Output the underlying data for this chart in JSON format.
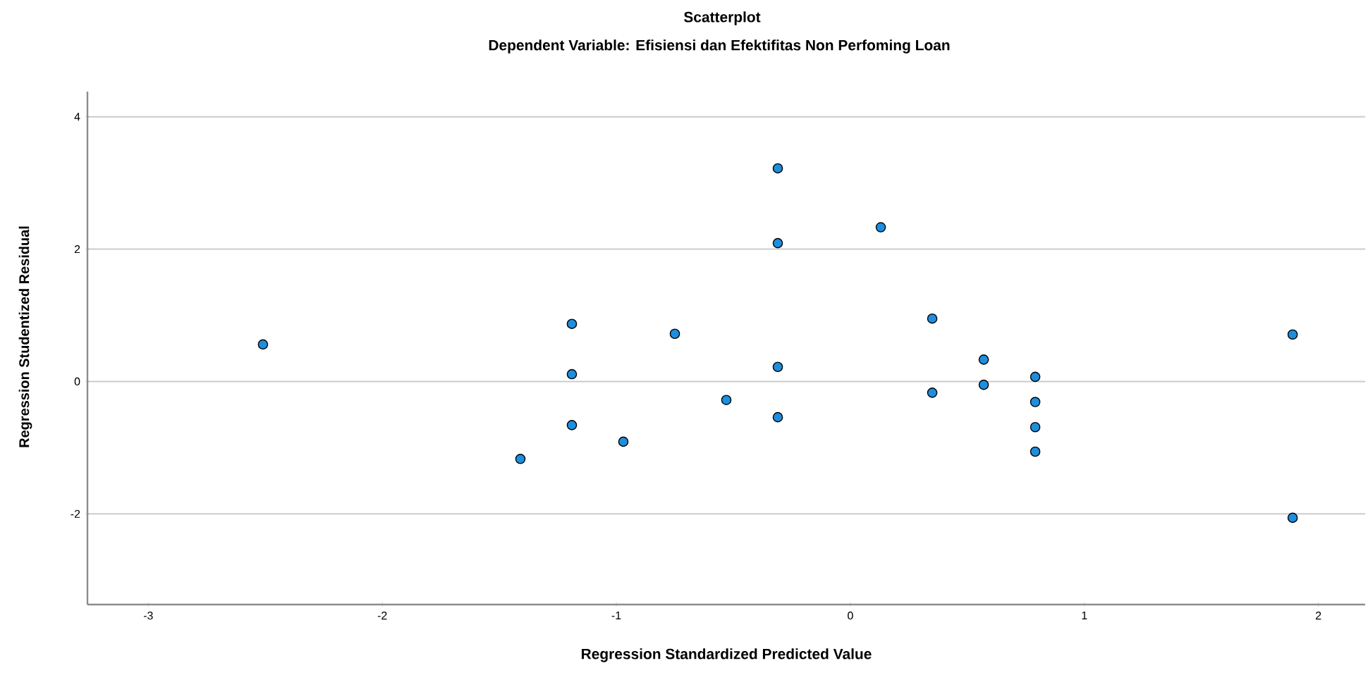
{
  "chart_data": {
    "type": "scatter",
    "title": "Scatterplot",
    "subtitle": "Dependent Variable: Efisiensi dan Efektifitas Non Perfoming Loan",
    "xlabel": "Regression Standardized Predicted Value",
    "ylabel": "Regression Studentized Residual",
    "x": [
      -2.51,
      -1.19,
      -1.19,
      -1.19,
      -1.41,
      -0.97,
      -0.75,
      -0.31,
      -0.31,
      0.13,
      -0.31,
      -0.53,
      -0.31,
      0.35,
      0.35,
      0.57,
      0.57,
      0.79,
      0.79,
      0.79,
      0.79,
      1.89,
      1.89
    ],
    "values": [
      0.56,
      0.87,
      0.11,
      -0.66,
      -1.17,
      -0.91,
      0.72,
      3.22,
      2.09,
      2.33,
      0.22,
      -0.28,
      -0.54,
      0.95,
      -0.17,
      0.33,
      -0.05,
      0.07,
      -0.31,
      -0.69,
      -1.06,
      0.71,
      -2.06
    ],
    "color": "#1e8ede",
    "marker": "circle",
    "grid": "y",
    "xlim": [
      -3.26,
      2.2
    ],
    "ylim": [
      -3.37,
      4.38
    ],
    "xticks": [
      -3,
      -2,
      -1,
      0,
      1,
      2
    ],
    "yticks": [
      -2,
      0,
      2,
      4
    ]
  }
}
